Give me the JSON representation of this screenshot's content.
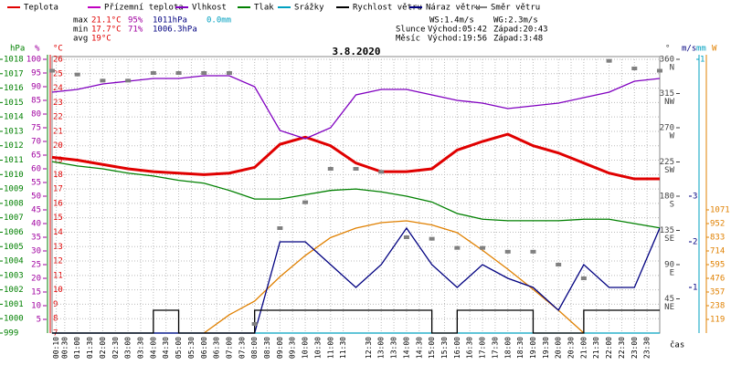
{
  "chart_data": {
    "type": "line",
    "title": "3.8.2020",
    "legend": [
      {
        "name": "Teplota",
        "color": "#e00000"
      },
      {
        "name": "Přízemní teplota",
        "color": "#c000c0"
      },
      {
        "name": "Vlhkost",
        "color": "#8000c0"
      },
      {
        "name": "Tlak",
        "color": "#008000"
      },
      {
        "name": "Srážky",
        "color": "#00a0c0"
      },
      {
        "name": "Rychlost větru",
        "color": "#000000"
      },
      {
        "name": "Náraz větru",
        "color": "#000080"
      },
      {
        "name": "Směr větru",
        "color": "#808080"
      }
    ],
    "stats": [
      {
        "label": "max",
        "values": [
          "21.1°C",
          "95%",
          "1011hPa",
          "0.0mm"
        ]
      },
      {
        "label": "min",
        "values": [
          "17.7°C",
          "71%",
          "1006.3hPa"
        ]
      },
      {
        "label": "avg",
        "values": [
          "19°C"
        ]
      }
    ],
    "wind": [
      "WS:1.4m/s",
      "WG:2.3m/s"
    ],
    "sun": {
      "label": "Slunce",
      "rise": "Východ:05:42",
      "set": "Západ:20:43"
    },
    "moon": {
      "label": "Měsíc",
      "rise": "Východ:19:56",
      "set": "Západ:3:48"
    },
    "xlabel": "čas",
    "xlim": [
      0,
      1440
    ],
    "xticks": [
      {
        "value": 10,
        "label": "00:10"
      },
      {
        "value": 30,
        "label": "00:30"
      },
      {
        "value": 60,
        "label": "01:00"
      },
      {
        "value": 90,
        "label": "01:30"
      },
      {
        "value": 120,
        "label": "02:00"
      },
      {
        "value": 150,
        "label": "02:30"
      },
      {
        "value": 180,
        "label": "03:00"
      },
      {
        "value": 210,
        "label": "03:30"
      },
      {
        "value": 240,
        "label": "04:00"
      },
      {
        "value": 270,
        "label": "04:30"
      },
      {
        "value": 300,
        "label": "05:00"
      },
      {
        "value": 330,
        "label": "05:30"
      },
      {
        "value": 360,
        "label": "06:00"
      },
      {
        "value": 390,
        "label": "06:30"
      },
      {
        "value": 420,
        "label": "07:00"
      },
      {
        "value": 450,
        "label": "07:30"
      },
      {
        "value": 480,
        "label": "08:00"
      },
      {
        "value": 510,
        "label": "08:30"
      },
      {
        "value": 540,
        "label": "09:00"
      },
      {
        "value": 570,
        "label": "09:30"
      },
      {
        "value": 600,
        "label": "10:00"
      },
      {
        "value": 630,
        "label": "10:30"
      },
      {
        "value": 660,
        "label": "11:00"
      },
      {
        "value": 690,
        "label": "11:30"
      },
      {
        "value": 750,
        "label": "12:30"
      },
      {
        "value": 780,
        "label": "13:00"
      },
      {
        "value": 810,
        "label": "13:30"
      },
      {
        "value": 840,
        "label": "14:00"
      },
      {
        "value": 870,
        "label": "14:30"
      },
      {
        "value": 900,
        "label": "15:00"
      },
      {
        "value": 930,
        "label": "15:30"
      },
      {
        "value": 960,
        "label": "16:00"
      },
      {
        "value": 990,
        "label": "16:30"
      },
      {
        "value": 1020,
        "label": "17:00"
      },
      {
        "value": 1050,
        "label": "17:30"
      },
      {
        "value": 1080,
        "label": "18:00"
      },
      {
        "value": 1110,
        "label": "18:30"
      },
      {
        "value": 1140,
        "label": "19:00"
      },
      {
        "value": 1170,
        "label": "19:30"
      },
      {
        "value": 1200,
        "label": "20:00"
      },
      {
        "value": 1230,
        "label": "20:30"
      },
      {
        "value": 1260,
        "label": "21:00"
      },
      {
        "value": 1290,
        "label": "21:30"
      },
      {
        "value": 1320,
        "label": "22:00"
      },
      {
        "value": 1350,
        "label": "22:30"
      },
      {
        "value": 1380,
        "label": "23:00"
      },
      {
        "value": 1410,
        "label": "23:30"
      }
    ],
    "axes": [
      {
        "unit": "hPa",
        "color": "#008000",
        "lim": [
          999,
          1018
        ],
        "ticks": [
          999,
          1000,
          1001,
          1002,
          1003,
          1004,
          1005,
          1006,
          1007,
          1008,
          1009,
          1010,
          1011,
          1012,
          1013,
          1014,
          1015,
          1016,
          1017,
          1018
        ]
      },
      {
        "unit": "%",
        "color": "#a000a0",
        "lim": [
          0,
          100
        ],
        "ticks": [
          5,
          10,
          15,
          20,
          25,
          30,
          35,
          40,
          45,
          50,
          55,
          60,
          65,
          70,
          75,
          80,
          85,
          90,
          95,
          100
        ]
      },
      {
        "unit": "°C",
        "color": "#e00000",
        "lim": [
          7,
          26
        ],
        "ticks": [
          7,
          8,
          9,
          10,
          11,
          12,
          13,
          14,
          15,
          16,
          17,
          18,
          19,
          20,
          21,
          22,
          23,
          24,
          25,
          26
        ]
      },
      {
        "unit": "°",
        "color": "#404040",
        "lim": [
          0,
          360
        ],
        "ticks": [
          45,
          90,
          135,
          180,
          225,
          270,
          315,
          360
        ],
        "names": [
          "NE",
          "E",
          "SE",
          "S",
          "SW",
          "W",
          "NW",
          "N"
        ]
      },
      {
        "unit": "m/s",
        "color": "#000080",
        "lim": [
          0,
          6
        ],
        "ticks": [
          1,
          2,
          3
        ]
      },
      {
        "unit": "mm",
        "color": "#00a0c0",
        "lim": [
          0,
          1
        ],
        "ticks": [
          1
        ]
      },
      {
        "unit": "W",
        "color": "#e08000",
        "lim": [
          0,
          2380
        ],
        "ticks": [
          119,
          238,
          357,
          476,
          595,
          714,
          833,
          952,
          1071
        ]
      }
    ],
    "x": [
      0,
      60,
      120,
      180,
      240,
      300,
      360,
      420,
      480,
      540,
      600,
      660,
      720,
      780,
      840,
      900,
      960,
      1020,
      1080,
      1140,
      1200,
      1260,
      1320,
      1380,
      1440
    ],
    "series": [
      {
        "name": "Přízemní teplota",
        "axis": "°C",
        "color": "#c000c0",
        "style": "line",
        "values": [
          19.2,
          19.0,
          18.7,
          18.4,
          18.2,
          18.1,
          18.0,
          18.1,
          18.5,
          20.1,
          20.6,
          20.0,
          18.8,
          18.2,
          18.2,
          18.4,
          19.7,
          20.3,
          20.8,
          20.0,
          19.5,
          18.8,
          18.1,
          17.7,
          17.7
        ]
      },
      {
        "name": "Teplota",
        "axis": "°C",
        "color": "#e00000",
        "style": "thick",
        "values": [
          19.2,
          19.0,
          18.7,
          18.4,
          18.2,
          18.1,
          18.0,
          18.1,
          18.5,
          20.1,
          20.6,
          20.0,
          18.8,
          18.2,
          18.2,
          18.4,
          19.7,
          20.3,
          20.8,
          20.0,
          19.5,
          18.8,
          18.1,
          17.7,
          17.7
        ]
      },
      {
        "name": "Vlhkost",
        "axis": "%",
        "color": "#8000c0",
        "style": "line",
        "values": [
          88,
          89,
          91,
          92,
          93,
          93,
          94,
          94,
          90,
          74,
          71,
          75,
          87,
          89,
          89,
          87,
          85,
          84,
          82,
          83,
          84,
          86,
          88,
          92,
          93
        ]
      },
      {
        "name": "Tlak",
        "axis": "hPa",
        "color": "#008000",
        "style": "line",
        "values": [
          1010.9,
          1010.6,
          1010.4,
          1010.1,
          1009.9,
          1009.6,
          1009.4,
          1008.9,
          1008.3,
          1008.3,
          1008.6,
          1008.9,
          1009.0,
          1008.8,
          1008.5,
          1008.1,
          1007.3,
          1006.9,
          1006.8,
          1006.8,
          1006.8,
          1006.9,
          1006.9,
          1006.6,
          1006.3
        ]
      },
      {
        "name": "Srážky",
        "axis": "mm",
        "color": "#00a0c0",
        "style": "line",
        "values": [
          0,
          0,
          0,
          0,
          0,
          0,
          0,
          0,
          0,
          0,
          0,
          0,
          0,
          0,
          0,
          0,
          0,
          0,
          0,
          0,
          0,
          0,
          0,
          0,
          0
        ]
      },
      {
        "name": "Slunce",
        "axis": "W",
        "color": "#e08000",
        "style": "line",
        "values": [
          null,
          null,
          null,
          null,
          null,
          null,
          0,
          159,
          278,
          490,
          674,
          830,
          912,
          960,
          976,
          940,
          873,
          720,
          555,
          380,
          198,
          0,
          null,
          null,
          null
        ]
      },
      {
        "name": "Náraz větru",
        "axis": "m/s",
        "color": "#000080",
        "style": "line",
        "values": [
          0,
          0,
          0,
          0,
          0,
          0,
          0,
          0,
          0,
          2,
          2,
          1.5,
          1,
          1.5,
          2.3,
          1.5,
          1,
          1.5,
          1.2,
          1,
          0.5,
          1.5,
          1,
          1,
          2.3
        ]
      },
      {
        "name": "Rychlost větru",
        "axis": "m/s",
        "color": "#000000",
        "style": "step",
        "values": [
          0,
          0,
          0,
          0,
          0.5,
          0,
          0,
          0,
          0.5,
          0.5,
          0.5,
          0.5,
          0.5,
          0.5,
          0.5,
          0,
          0.5,
          0.5,
          0.5,
          0,
          0,
          0.5,
          0.5,
          0.5,
          0.5
        ]
      },
      {
        "name": "Směr větru",
        "axis": "°",
        "color": "#808080",
        "style": "points",
        "values": [
          345,
          340,
          332,
          332,
          342,
          342,
          342,
          342,
          12,
          138,
          172,
          216,
          216,
          212,
          126,
          124,
          112,
          112,
          107,
          107,
          90,
          72,
          358,
          348,
          345
        ]
      }
    ]
  }
}
